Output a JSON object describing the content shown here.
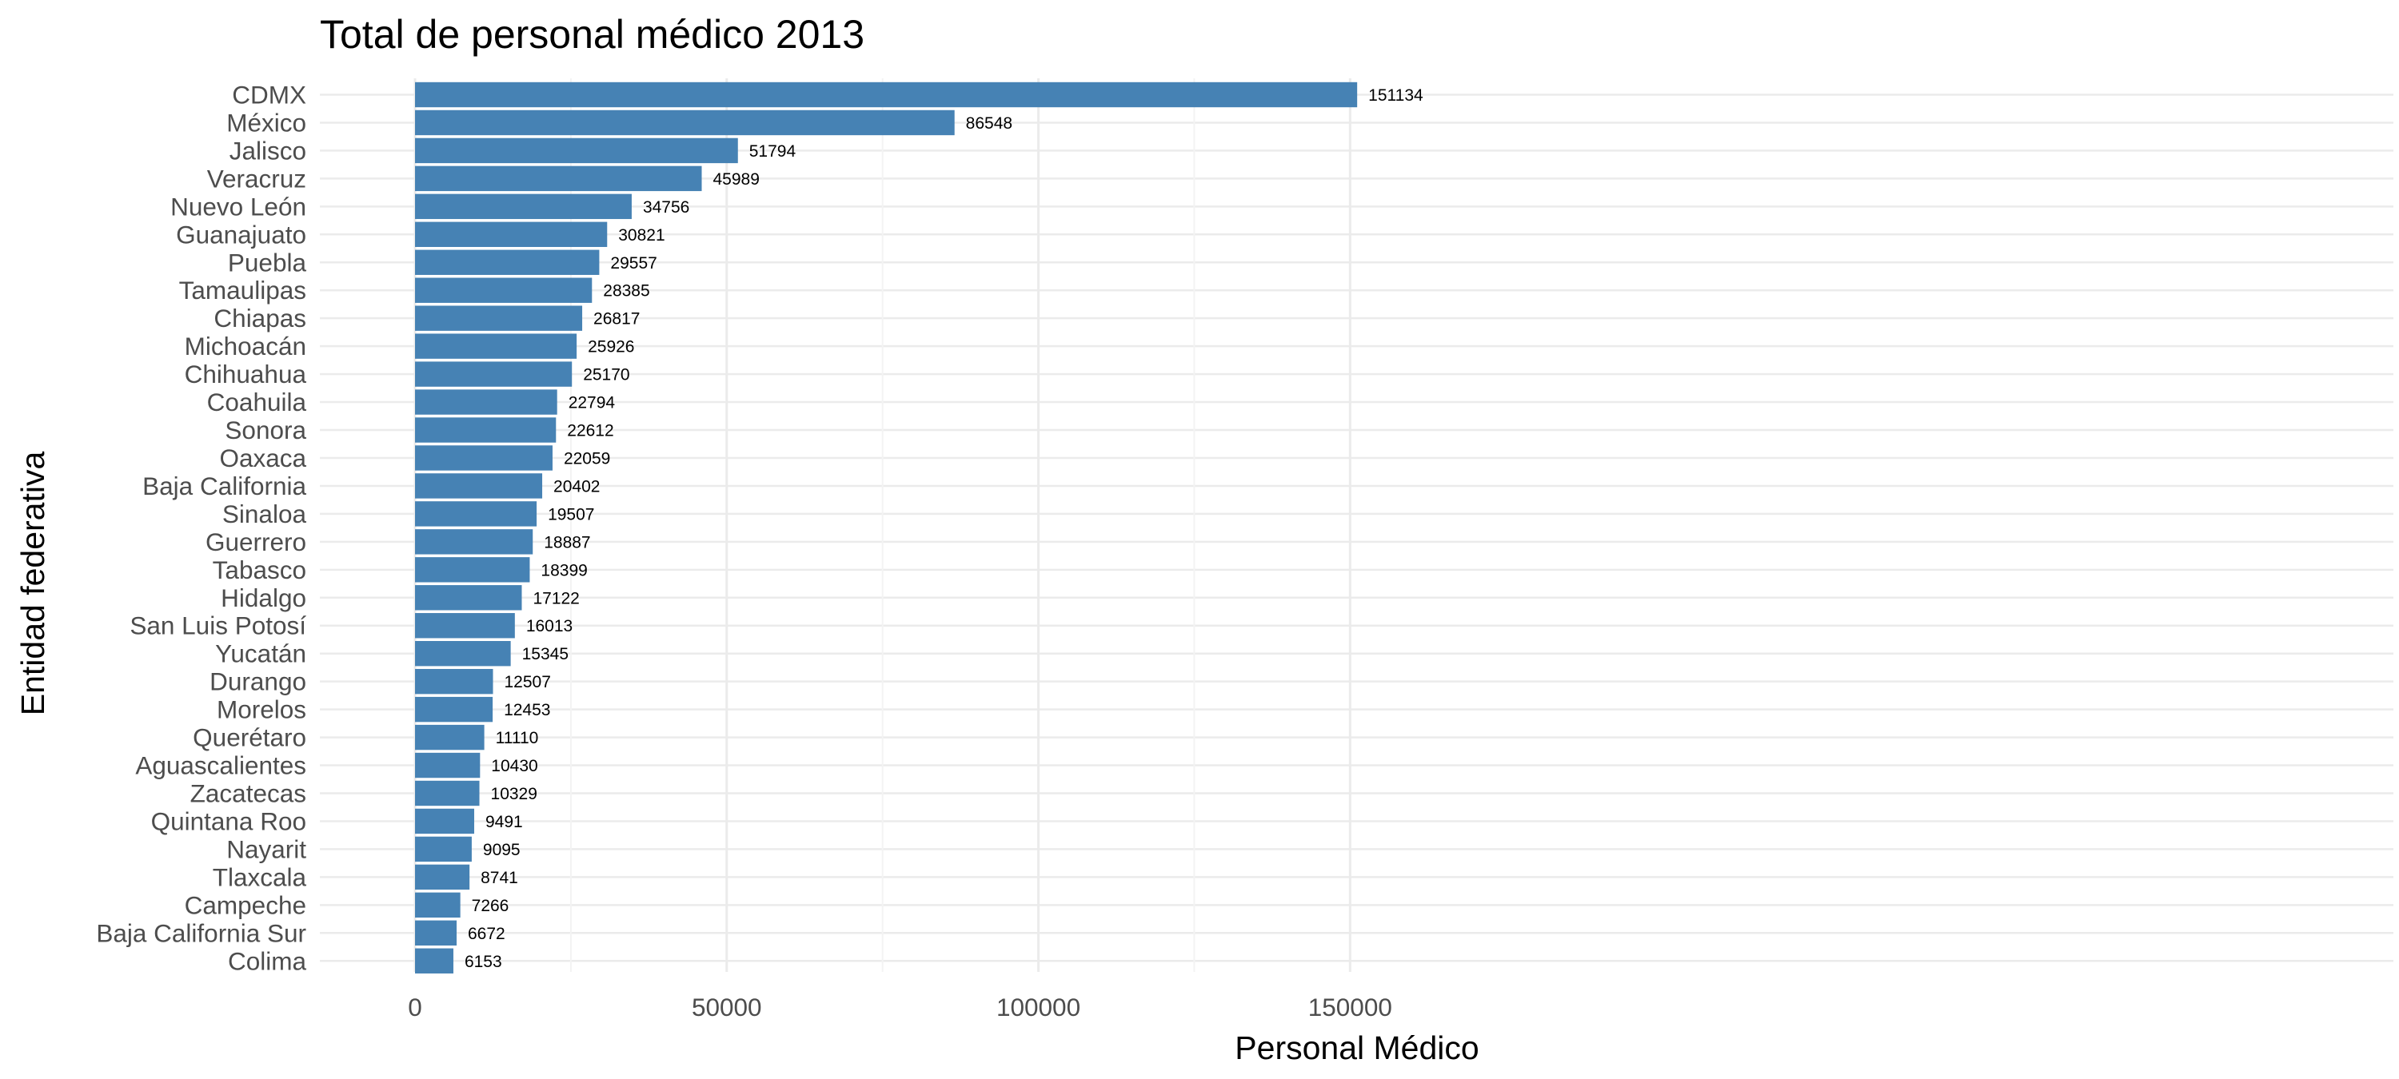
{
  "colors": {
    "bar": "#4682B4",
    "grid_major": "#ebebeb",
    "grid_minor": "#f3f3f3",
    "background": "#ffffff"
  },
  "chart_data": {
    "type": "bar",
    "orientation": "horizontal",
    "title": "Total de personal médico 2013",
    "xlabel": "Personal Médico",
    "ylabel": "Entidad federativa",
    "xlim": [
      0,
      158000
    ],
    "xticks": [
      0,
      50000,
      100000,
      150000
    ],
    "xtick_labels": [
      "0",
      "50000",
      "100000",
      "150000"
    ],
    "grid": true,
    "categories": [
      "CDMX",
      "México",
      "Jalisco",
      "Veracruz",
      "Nuevo León",
      "Guanajuato",
      "Puebla",
      "Tamaulipas",
      "Chiapas",
      "Michoacán",
      "Chihuahua",
      "Coahuila",
      "Sonora",
      "Oaxaca",
      "Baja California",
      "Sinaloa",
      "Guerrero",
      "Tabasco",
      "Hidalgo",
      "San Luis Potosí",
      "Yucatán",
      "Durango",
      "Morelos",
      "Querétaro",
      "Aguascalientes",
      "Zacatecas",
      "Quintana Roo",
      "Nayarit",
      "Tlaxcala",
      "Campeche",
      "Baja California Sur",
      "Colima"
    ],
    "values": [
      151134,
      86548,
      51794,
      45989,
      34756,
      30821,
      29557,
      28385,
      26817,
      25926,
      25170,
      22794,
      22612,
      22059,
      20402,
      19507,
      18887,
      18399,
      17122,
      16013,
      15345,
      12507,
      12453,
      11110,
      10430,
      10329,
      9491,
      9095,
      8741,
      7266,
      6672,
      6153
    ],
    "data_labels": [
      "151134",
      "86548",
      "51794",
      "45989",
      "34756",
      "30821",
      "29557",
      "28385",
      "26817",
      "25926",
      "25170",
      "22794",
      "22612",
      "22059",
      "20402",
      "19507",
      "18887",
      "18399",
      "17122",
      "16013",
      "15345",
      "12507",
      "12453",
      "11110",
      "10430",
      "10329",
      "9491",
      "9095",
      "8741",
      "7266",
      "6672",
      "6153"
    ]
  }
}
